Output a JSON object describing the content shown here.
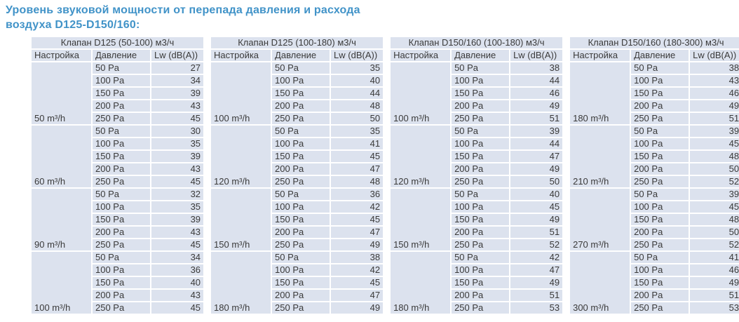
{
  "title": "Уровень звуковой мощности от перепада давления и расхода воздуха D125-D150/160:",
  "colors": {
    "title_text": "#4193c8",
    "cell_background": "#dce2ee",
    "table_text": "#3a3a3a",
    "cell_border": "#ffffff"
  },
  "columns": [
    "Настройка",
    "Давление",
    "Lw (dB(A))"
  ],
  "pressures": [
    "50 Pa",
    "100 Pa",
    "150 Pa",
    "200 Pa",
    "250 Pa"
  ],
  "tables": [
    {
      "header": "Клапан D125 (50-100) м3/ч",
      "groups": [
        {
          "setting": "50 m³/h",
          "values": [
            27,
            34,
            39,
            43,
            45
          ]
        },
        {
          "setting": "60 m³/h",
          "values": [
            30,
            35,
            39,
            43,
            45
          ]
        },
        {
          "setting": "90 m³/h",
          "values": [
            32,
            35,
            39,
            43,
            45
          ]
        },
        {
          "setting": "100 m³/h",
          "values": [
            34,
            36,
            40,
            43,
            45
          ]
        }
      ]
    },
    {
      "header": "Клапан D125 (100-180) м3/ч",
      "groups": [
        {
          "setting": "100 m³/h",
          "values": [
            35,
            40,
            44,
            48,
            50
          ]
        },
        {
          "setting": "120 m³/h",
          "values": [
            35,
            41,
            45,
            47,
            48
          ]
        },
        {
          "setting": "150 m³/h",
          "values": [
            36,
            42,
            45,
            47,
            49
          ]
        },
        {
          "setting": "180 m³/h",
          "values": [
            38,
            42,
            45,
            47,
            49
          ]
        }
      ]
    },
    {
      "header": "Клапан D150/160 (100-180) м3/ч",
      "groups": [
        {
          "setting": "100 m³/h",
          "values": [
            38,
            44,
            46,
            49,
            51
          ]
        },
        {
          "setting": "120 m³/h",
          "values": [
            39,
            44,
            47,
            49,
            50
          ]
        },
        {
          "setting": "150 m³/h",
          "values": [
            40,
            45,
            49,
            51,
            52
          ]
        },
        {
          "setting": "180 m³/h",
          "values": [
            42,
            47,
            49,
            51,
            53
          ]
        }
      ]
    },
    {
      "header": "Клапан D150/160 (180-300) м3/ч",
      "groups": [
        {
          "setting": "180 m³/h",
          "values": [
            38,
            43,
            46,
            49,
            51
          ]
        },
        {
          "setting": "210 m³/h",
          "values": [
            39,
            45,
            48,
            50,
            52
          ]
        },
        {
          "setting": "270 m³/h",
          "values": [
            39,
            45,
            48,
            50,
            52
          ]
        },
        {
          "setting": "300 m³/h",
          "values": [
            41,
            46,
            49,
            51,
            53
          ]
        }
      ]
    }
  ]
}
